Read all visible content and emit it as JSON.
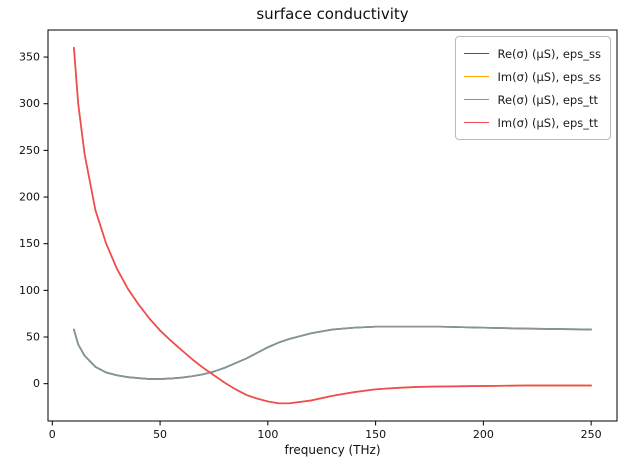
{
  "chart_data": {
    "type": "line",
    "title": "surface conductivity",
    "xlabel": "frequency (THz)",
    "ylabel": "",
    "xlim": [
      -2,
      262
    ],
    "ylim": [
      -40,
      379
    ],
    "xticks": [
      0,
      50,
      100,
      150,
      200,
      250
    ],
    "yticks": [
      0,
      50,
      100,
      150,
      200,
      250,
      300,
      350
    ],
    "grid": false,
    "legend_position": "upper right",
    "x": [
      10,
      12,
      15,
      20,
      25,
      30,
      35,
      40,
      45,
      50,
      55,
      60,
      65,
      70,
      75,
      80,
      85,
      90,
      95,
      100,
      105,
      110,
      120,
      130,
      140,
      150,
      160,
      170,
      180,
      200,
      220,
      250
    ],
    "series": [
      {
        "name": "Re(σ) (μS), eps_ss",
        "color": "#177245",
        "values": [
          58,
          42,
          30,
          18,
          12,
          9,
          7,
          6,
          5,
          5,
          5.5,
          6.5,
          8,
          10,
          13,
          17,
          22,
          27,
          33,
          39,
          44,
          48,
          54,
          58,
          60,
          61,
          61,
          61,
          61,
          60,
          59,
          58
        ]
      },
      {
        "name": "Im(σ) (μS), eps_ss",
        "color": "#ffa500",
        "values": [
          360,
          300,
          246,
          186,
          150,
          123,
          102,
          85,
          70,
          57,
          46,
          36,
          26,
          17,
          9,
          1,
          -6,
          -12,
          -16,
          -19,
          -21,
          -21,
          -18,
          -13,
          -9,
          -6,
          -4.5,
          -3.5,
          -3,
          -2.5,
          -2,
          -2
        ]
      },
      {
        "name": "Re(σ) (μS), eps_tt",
        "color": "#8b9398",
        "values": [
          58,
          42,
          30,
          18,
          12,
          9,
          7,
          6,
          5,
          5,
          5.5,
          6.5,
          8,
          10,
          13,
          17,
          22,
          27,
          33,
          39,
          44,
          48,
          54,
          58,
          60,
          61,
          61,
          61,
          61,
          60,
          59,
          58
        ]
      },
      {
        "name": "Im(σ) (μS), eps_tt",
        "color": "#ee4b57",
        "values": [
          360,
          300,
          246,
          186,
          150,
          123,
          102,
          85,
          70,
          57,
          46,
          36,
          26,
          17,
          9,
          1,
          -6,
          -12,
          -16,
          -19,
          -21,
          -21,
          -18,
          -13,
          -9,
          -6,
          -4.5,
          -3.5,
          -3,
          -2.5,
          -2,
          -2
        ]
      }
    ]
  }
}
